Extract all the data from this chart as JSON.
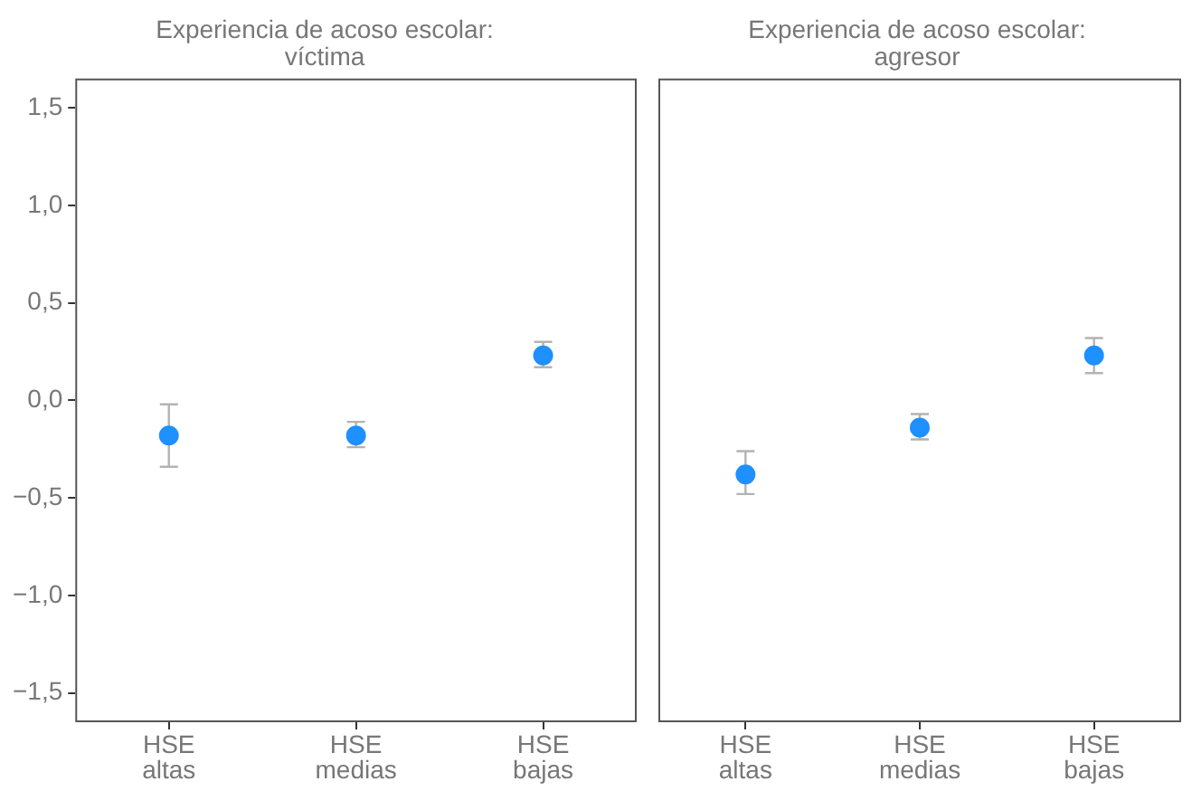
{
  "chart_data": [
    {
      "type": "scatter",
      "title": "Experiencia de acoso escolar:\nvíctima",
      "categories": [
        "HSE\naltas",
        "HSE\nmedias",
        "HSE\nbajas"
      ],
      "series": [
        {
          "color": "#1e90ff",
          "values": [
            -0.18,
            -0.18,
            0.23
          ],
          "errors": [
            [
              -0.34,
              -0.02
            ],
            [
              -0.24,
              -0.11
            ],
            [
              0.17,
              0.3
            ]
          ]
        }
      ],
      "ylim": [
        -1.65,
        1.65
      ],
      "yticks": [
        {
          "value": -1.5,
          "label": "−1,5"
        },
        {
          "value": -1,
          "label": "−1,0"
        },
        {
          "value": -0.5,
          "label": "−0,5"
        },
        {
          "value": 0,
          "label": "0,0"
        },
        {
          "value": 0.5,
          "label": "0,5"
        },
        {
          "value": 1,
          "label": "1,0"
        },
        {
          "value": 1.5,
          "label": "1,5"
        }
      ],
      "grid": false,
      "legend": false,
      "marker": "circle"
    },
    {
      "type": "scatter",
      "title": "Experiencia de acoso escolar:\nagresor",
      "categories": [
        "HSE\naltas",
        "HSE\nmedias",
        "HSE\nbajas"
      ],
      "series": [
        {
          "color": "#1e90ff",
          "values": [
            -0.38,
            -0.14,
            0.23
          ],
          "errors": [
            [
              -0.48,
              -0.26
            ],
            [
              -0.2,
              -0.07
            ],
            [
              0.14,
              0.32
            ]
          ]
        }
      ],
      "ylim": [
        -1.65,
        1.65
      ],
      "grid": false,
      "legend": false,
      "marker": "circle",
      "tick_labels": "x"
    }
  ]
}
